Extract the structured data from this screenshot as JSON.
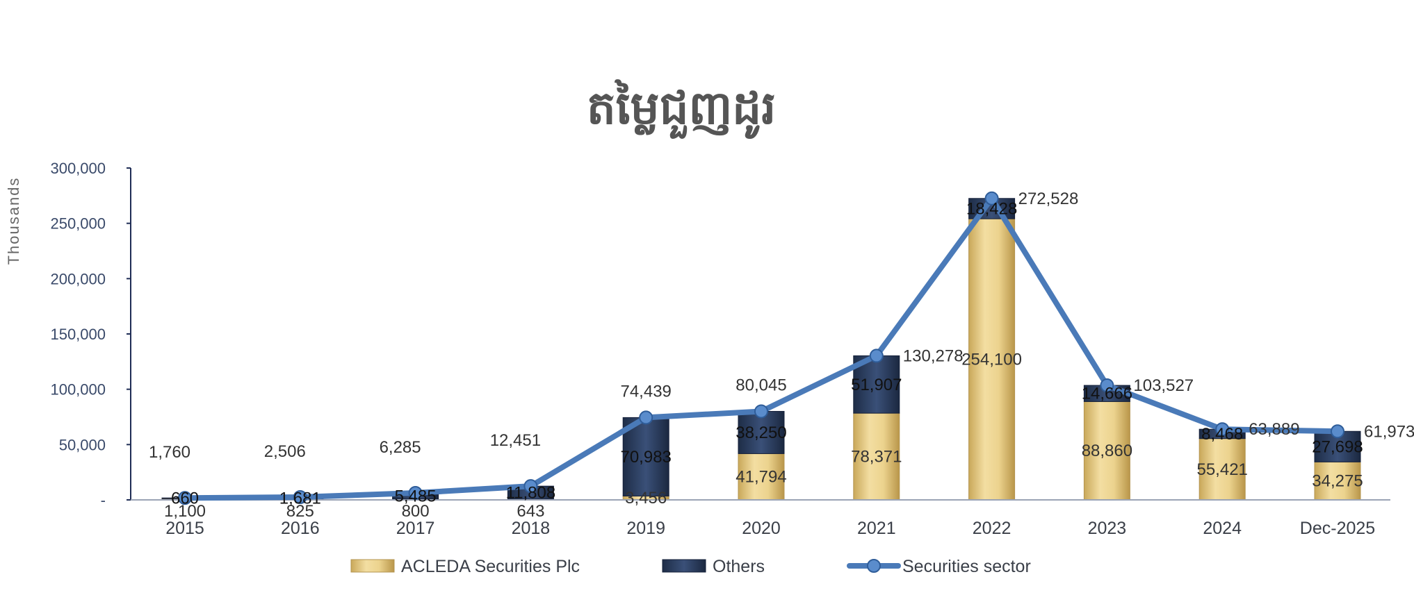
{
  "chart_data": {
    "type": "bar",
    "title": "តម្លៃជួញដូរ",
    "ylabel": "Thousands",
    "xlabel": "",
    "ylim": [
      0,
      300000
    ],
    "y_ticks": [
      {
        "value": 0,
        "label": "-"
      },
      {
        "value": 50000,
        "label": "50,000"
      },
      {
        "value": 100000,
        "label": "100,000"
      },
      {
        "value": 150000,
        "label": "150,000"
      },
      {
        "value": 200000,
        "label": "200,000"
      },
      {
        "value": 250000,
        "label": "250,000"
      },
      {
        "value": 300000,
        "label": "300,000"
      }
    ],
    "categories": [
      "2015",
      "2016",
      "2017",
      "2018",
      "2019",
      "2020",
      "2021",
      "2022",
      "2023",
      "2024",
      "Dec-2025"
    ],
    "legend_position": "bottom",
    "grid": false,
    "series": [
      {
        "name": "ACLEDA Securities Plc",
        "kind": "stacked-bar",
        "color": "#e8cf8a",
        "values": [
          1100,
          825,
          800,
          643,
          3456,
          41794,
          78371,
          254100,
          88860,
          55421,
          34275
        ],
        "labels": [
          "1,100",
          "825",
          "800",
          "643",
          "3,456",
          "41,794",
          "78,371",
          "254,100",
          "88,860",
          "55,421",
          "34,275"
        ]
      },
      {
        "name": "Others",
        "kind": "stacked-bar",
        "color": "#2c3e5e",
        "values": [
          660,
          1681,
          5485,
          11808,
          70983,
          38250,
          51907,
          18428,
          14666,
          8468,
          27698
        ],
        "labels": [
          "660",
          "1,681",
          "5,485",
          "11,808",
          "70,983",
          "38,250",
          "51,907",
          "18,428",
          "14,666",
          "8,468",
          "27,698"
        ]
      },
      {
        "name": "Securities sector",
        "kind": "line",
        "color": "#4a7ab8",
        "values": [
          1760,
          2506,
          6285,
          12451,
          74439,
          80045,
          130278,
          272528,
          103527,
          63889,
          61973
        ],
        "labels": [
          "1,760",
          "2,506",
          "6,285",
          "12,451",
          "74,439",
          "80,045",
          "130,278",
          "272,528",
          "103,527",
          "63,889",
          "61,973"
        ]
      }
    ]
  }
}
